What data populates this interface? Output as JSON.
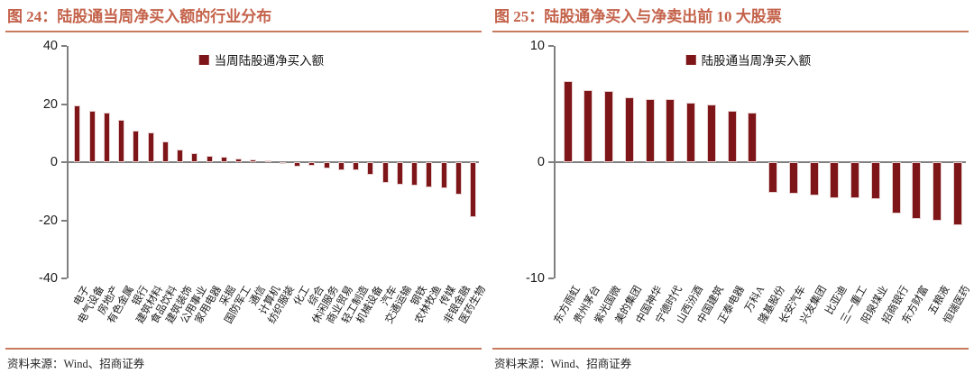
{
  "accent_color": "#c4624a",
  "bar_color": "#7e1518",
  "axis_color": "#7f7f7f",
  "chart_data": [
    {
      "type": "bar",
      "title": "图 24：陆股通当周净买入额的行业分布",
      "legend": "当周陆股通净买入额",
      "source": "资料来源：Wind、招商证券",
      "ylim": [
        -40,
        40
      ],
      "yticks": [
        40,
        20,
        0,
        -20,
        -40
      ],
      "grid": false,
      "legend_position": "top-center",
      "xlabel": "",
      "ylabel": "",
      "categories": [
        "电子",
        "电气设备",
        "房地产",
        "有色金属",
        "银行",
        "建筑材料",
        "食品饮料",
        "建筑装饰",
        "公用事业",
        "家用电器",
        "采掘",
        "国防军工",
        "通信",
        "计算机",
        "纺织服装",
        "化工",
        "综合",
        "休闲服务",
        "商业贸易",
        "轻工制造",
        "机械设备",
        "汽车",
        "交通运输",
        "钢铁",
        "农林牧渔",
        "传媒",
        "非银金融",
        "医药生物"
      ],
      "values": [
        19.4,
        17.6,
        17.1,
        14.5,
        10.9,
        10.1,
        7.0,
        4.4,
        3.1,
        2.2,
        1.8,
        1.3,
        1.0,
        0.5,
        -0.6,
        -1.4,
        -1.3,
        -2.3,
        -2.7,
        -2.8,
        -4.4,
        -7.2,
        -7.6,
        -8.2,
        -8.7,
        -9.0,
        -11.3,
        -19.0
      ]
    },
    {
      "type": "bar",
      "title": "图 25：陆股通净买入与净卖出前 10 大股票",
      "legend": "陆股通当周净买入额",
      "source": "资料来源：Wind、招商证券",
      "ylim": [
        -10,
        10
      ],
      "yticks": [
        10,
        0,
        -10
      ],
      "grid": false,
      "legend_position": "top-center",
      "xlabel": "",
      "ylabel": "",
      "categories": [
        "东方雨虹",
        "贵州茅台",
        "紫光国微",
        "美的集团",
        "中国神华",
        "宁德时代",
        "山西汾酒",
        "中国建筑",
        "正泰电器",
        "万科A",
        "隆基股份",
        "长安汽车",
        "兴发集团",
        "比亚迪",
        "三一重工",
        "阳泉煤业",
        "招商银行",
        "东方财富",
        "五粮液",
        "恒瑞医药"
      ],
      "values": [
        7.0,
        6.2,
        6.1,
        5.6,
        5.4,
        5.4,
        5.1,
        5.0,
        4.4,
        4.3,
        -2.6,
        -2.7,
        -2.9,
        -3.1,
        -3.1,
        -3.2,
        -4.4,
        -4.9,
        -5.0,
        -5.4
      ]
    }
  ]
}
